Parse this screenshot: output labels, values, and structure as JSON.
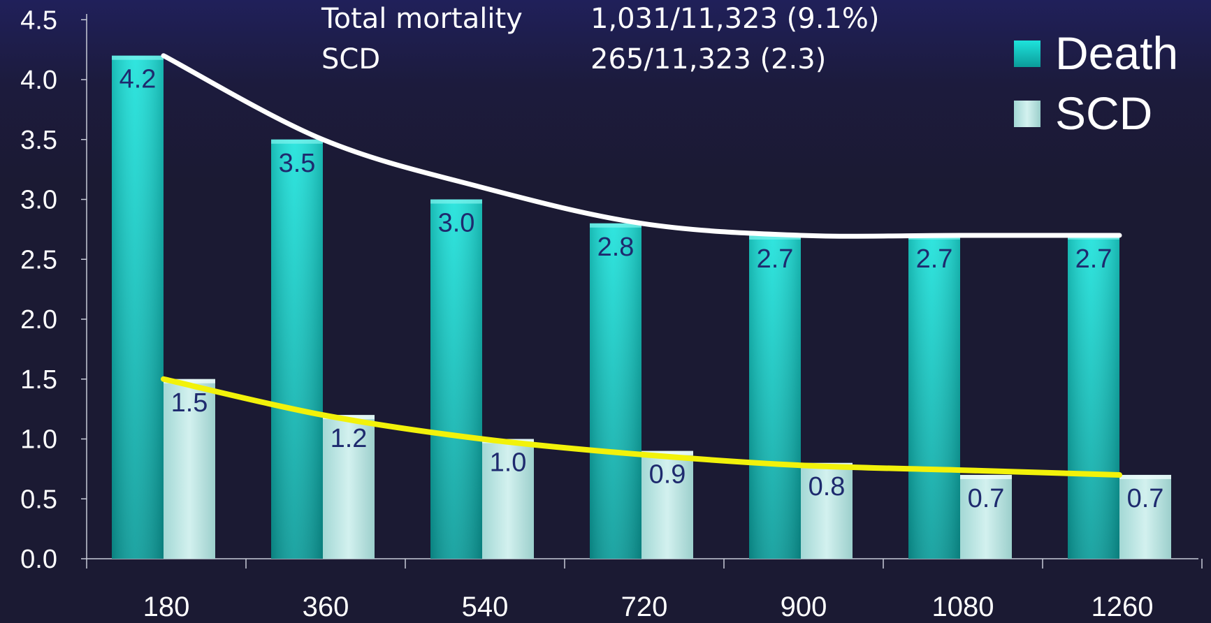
{
  "summary": {
    "rows": [
      {
        "label": "Total mortality",
        "value": "1,031/11,323 (9.1%)"
      },
      {
        "label": "SCD",
        "value": "265/11,323 (2.3)"
      }
    ]
  },
  "colors": {
    "background": "#1b1a33",
    "death_bar": "#12c9c4",
    "scd_bar": "#b8e6e3",
    "death_trend": "#ffffff",
    "scd_trend": "#f2f20a",
    "axis": "#c8cbd8",
    "data_label": "#1e2a6e"
  },
  "chart_data": {
    "type": "bar",
    "categories": [
      "180",
      "360",
      "540",
      "720",
      "900",
      "1080",
      "1260"
    ],
    "series": [
      {
        "name": "Death",
        "values": [
          4.2,
          3.5,
          3.0,
          2.8,
          2.7,
          2.7,
          2.7
        ],
        "labels": [
          "4.2",
          "3.5",
          "3.0",
          "2.8",
          "2.7",
          "2.7",
          "2.7"
        ]
      },
      {
        "name": "SCD",
        "values": [
          1.5,
          1.2,
          1.0,
          0.9,
          0.8,
          0.7,
          0.7
        ],
        "labels": [
          "1.5",
          "1.2",
          "1.0",
          "0.9",
          "0.8",
          "0.7",
          "0.7"
        ]
      }
    ],
    "trendlines": [
      {
        "series": "Death",
        "color": "white",
        "values": [
          4.2,
          3.5,
          3.1,
          2.8,
          2.7,
          2.7,
          2.7
        ]
      },
      {
        "series": "SCD",
        "color": "yellow",
        "values": [
          1.5,
          1.2,
          1.0,
          0.87,
          0.78,
          0.74,
          0.7
        ]
      }
    ],
    "yticks": [
      "0.0",
      "0.5",
      "1.0",
      "1.5",
      "2.0",
      "2.5",
      "3.0",
      "3.5",
      "4.0",
      "4.5"
    ],
    "ylim": [
      0,
      4.5
    ],
    "legend": {
      "position": "top-right",
      "entries": [
        "Death",
        "SCD"
      ]
    },
    "grid": false,
    "title": "",
    "xlabel": "",
    "ylabel": ""
  }
}
